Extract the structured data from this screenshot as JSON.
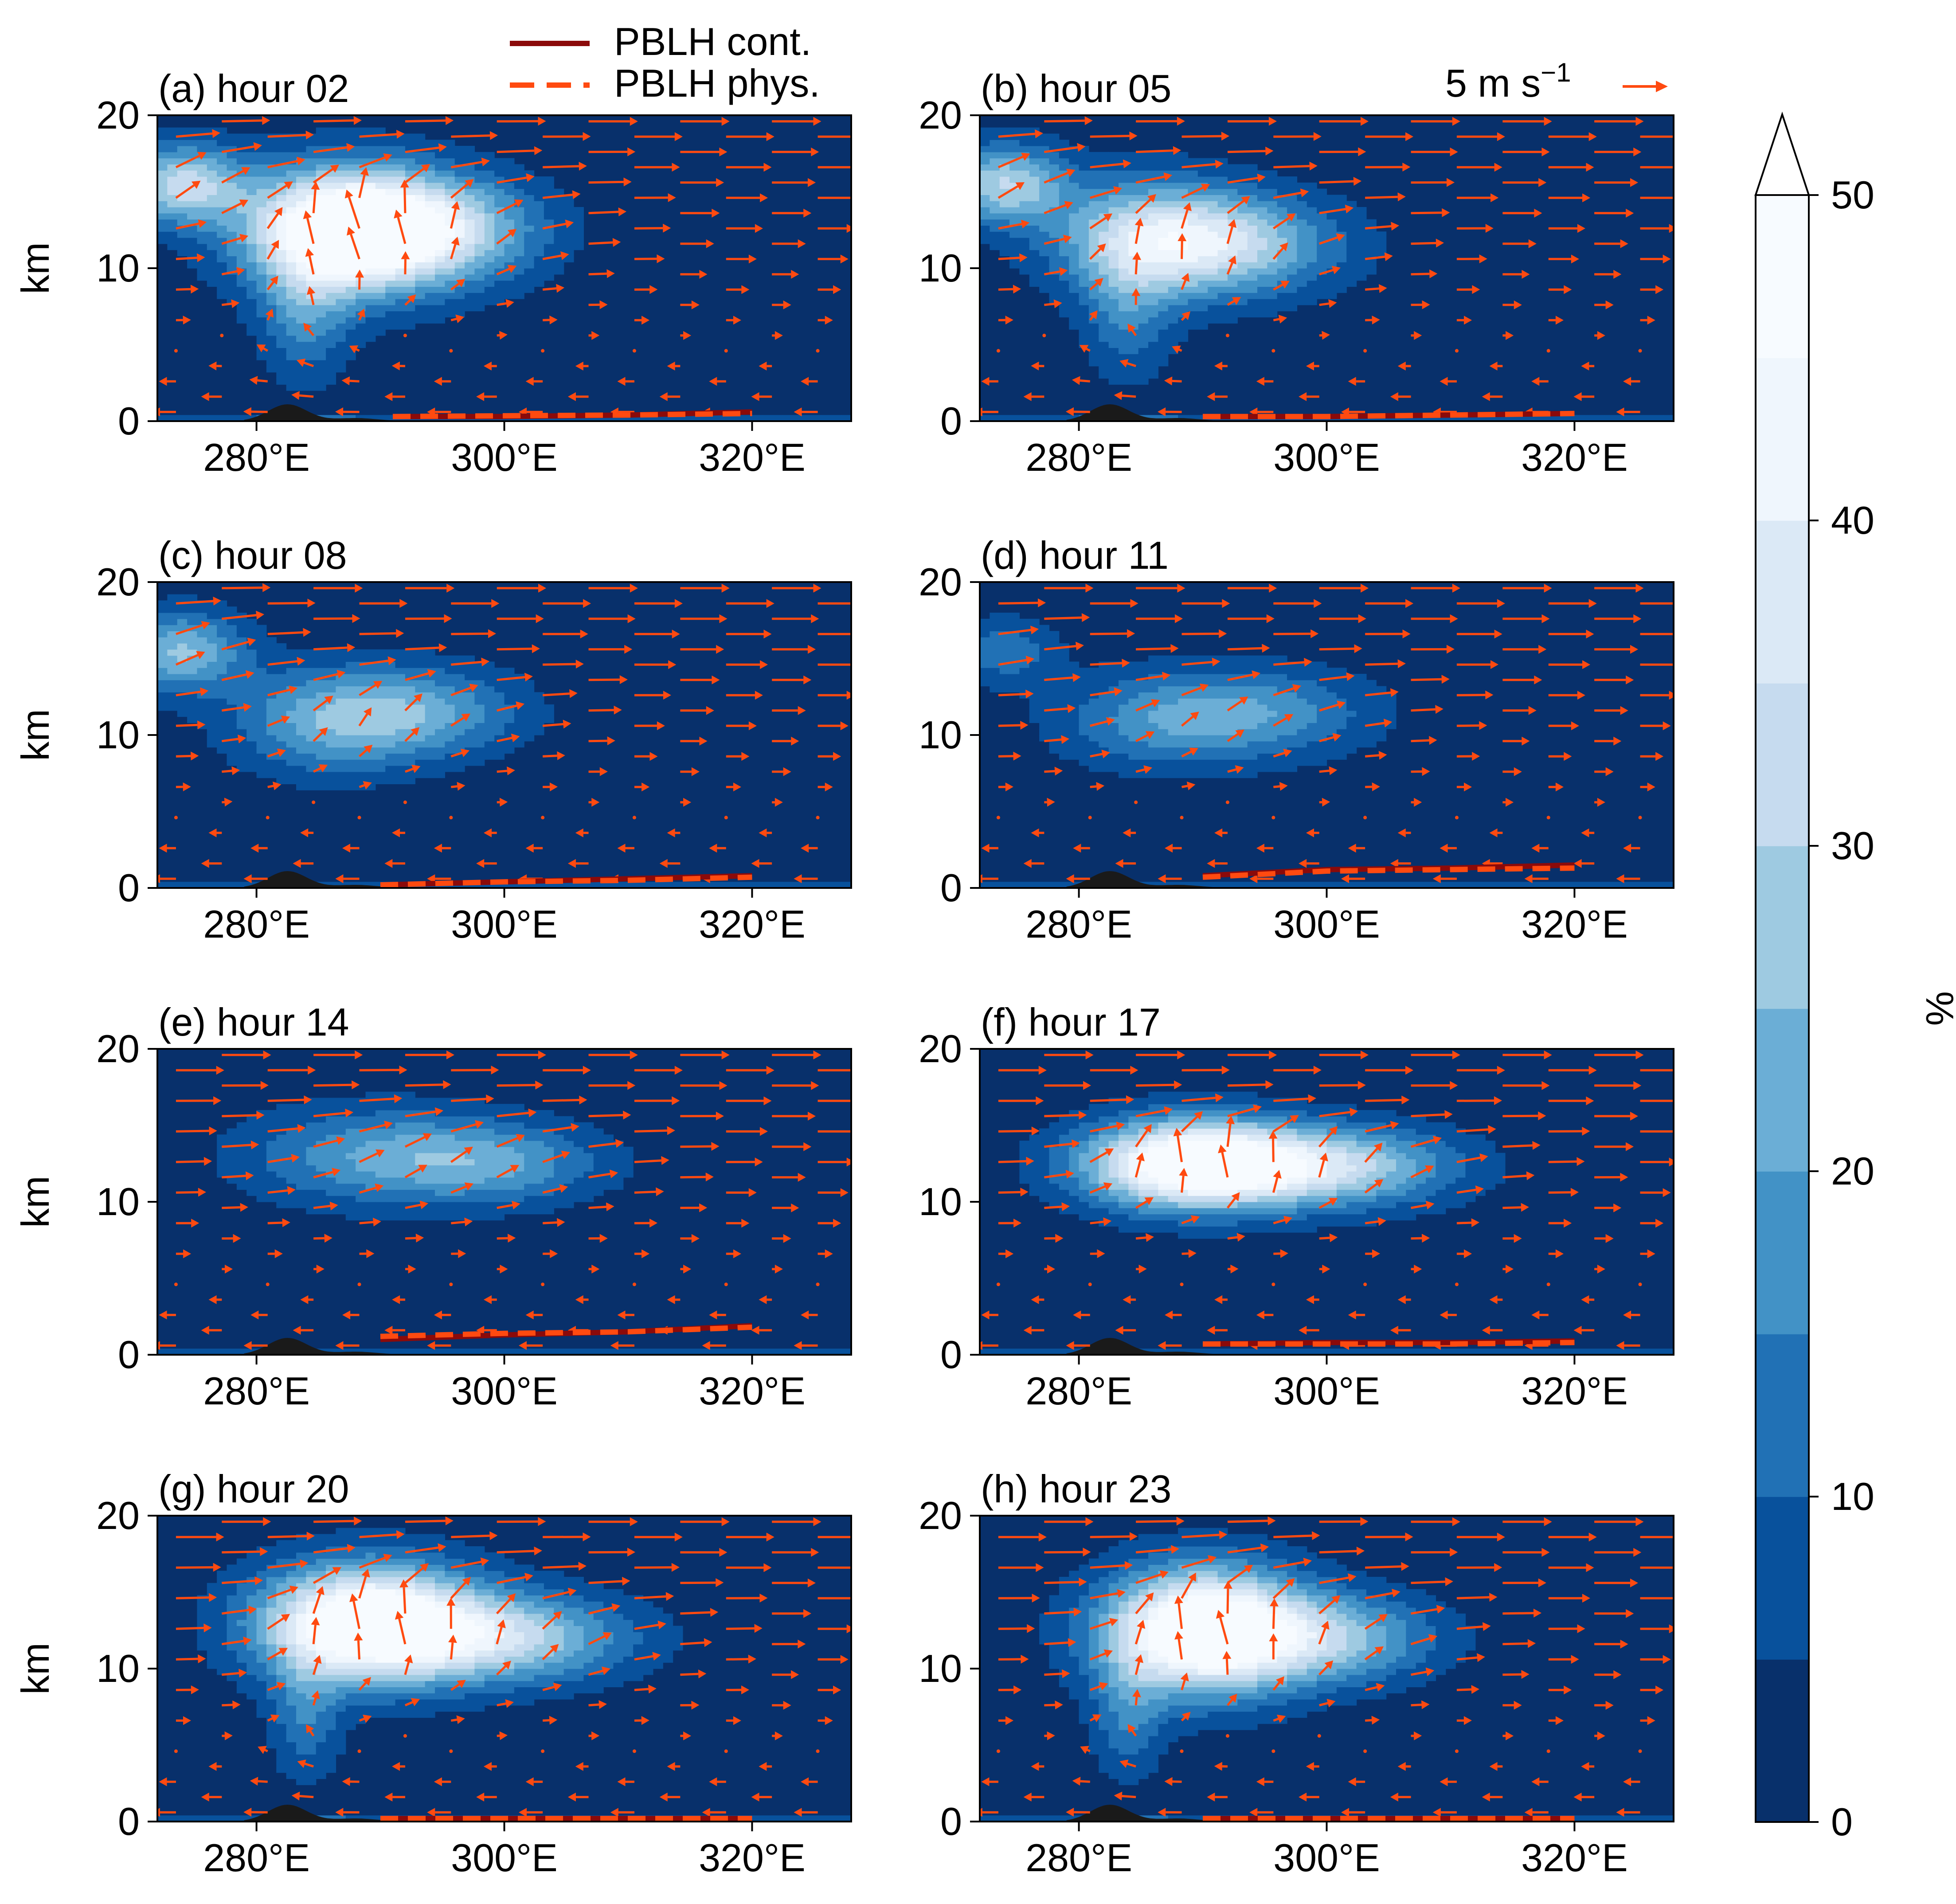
{
  "chart_data": {
    "type": "heatmap",
    "description_free": true,
    "colorbar": {
      "label": "%",
      "ticks": [
        0,
        10,
        20,
        30,
        40,
        50
      ],
      "levels": [
        0,
        5,
        10,
        15,
        20,
        25,
        30,
        35,
        40,
        45,
        50
      ],
      "extend": "max",
      "colors": [
        "#08306b",
        "#08519c",
        "#2171b5",
        "#4292c6",
        "#6baed6",
        "#9ecae1",
        "#c6dbef",
        "#dbe9f6",
        "#eff6fd",
        "#f7fbff"
      ]
    },
    "legend": {
      "placement": "top-center",
      "items": [
        {
          "label": "PBLH cont.",
          "style": "solid",
          "color": "#8b0a0a"
        },
        {
          "label": "PBLH phys.",
          "style": "dashed",
          "color": "#ff4a10"
        }
      ]
    },
    "quiver_key": {
      "label": "5 m s",
      "exponent": "−1",
      "color": "#ff4a10",
      "placement": "top-right"
    },
    "axes": {
      "xlim": [
        272,
        328
      ],
      "ylim": [
        0,
        20
      ],
      "xticks": [
        280,
        300,
        320
      ],
      "xtick_labels": [
        "280°E",
        "300°E",
        "320°E"
      ],
      "yticks": [
        0,
        10,
        20
      ],
      "ytick_labels": [
        "0",
        "10",
        "20"
      ],
      "ylabel": "km"
    },
    "panels": [
      {
        "title": "(a) hour 02",
        "cloud_blobs": [
          {
            "x": 287,
            "y": 12.5,
            "sx": 5.5,
            "sy": 2.8,
            "v": 52
          },
          {
            "x": 294,
            "y": 12.5,
            "sx": 6.0,
            "sy": 2.4,
            "v": 30
          },
          {
            "x": 274,
            "y": 15.5,
            "sx": 3.5,
            "sy": 1.8,
            "v": 30
          },
          {
            "x": 284,
            "y": 7,
            "sx": 2.5,
            "sy": 3,
            "v": 14
          }
        ],
        "pblh": [
          [
            291,
            0.3
          ],
          [
            300,
            0.3
          ],
          [
            310,
            0.4
          ],
          [
            320,
            0.6
          ]
        ],
        "pblh_phys": [
          [
            291,
            0.3
          ],
          [
            300,
            0.35
          ],
          [
            310,
            0.4
          ],
          [
            320,
            0.5
          ]
        ],
        "low_level_flow": -2.0,
        "upper_level_flow": 2.5
      },
      {
        "title": "(b) hour 05",
        "cloud_blobs": [
          {
            "x": 286,
            "y": 12,
            "sx": 5.5,
            "sy": 2.6,
            "v": 30
          },
          {
            "x": 293,
            "y": 11.5,
            "sx": 6.0,
            "sy": 2.2,
            "v": 22
          },
          {
            "x": 274,
            "y": 15.5,
            "sx": 3.5,
            "sy": 1.8,
            "v": 28
          },
          {
            "x": 284,
            "y": 7,
            "sx": 2.5,
            "sy": 3,
            "v": 12
          }
        ],
        "pblh": [
          [
            290,
            0.3
          ],
          [
            300,
            0.3
          ],
          [
            310,
            0.4
          ],
          [
            320,
            0.5
          ]
        ],
        "pblh_phys": [
          [
            290,
            0.3
          ],
          [
            300,
            0.3
          ],
          [
            310,
            0.4
          ],
          [
            320,
            0.5
          ]
        ],
        "low_level_flow": -2.0,
        "upper_level_flow": 2.5
      },
      {
        "title": "(c) hour 08",
        "cloud_blobs": [
          {
            "x": 286,
            "y": 11,
            "sx": 5.5,
            "sy": 2.4,
            "v": 20
          },
          {
            "x": 294,
            "y": 11.5,
            "sx": 5.5,
            "sy": 2.0,
            "v": 16
          },
          {
            "x": 274,
            "y": 15.5,
            "sx": 3.5,
            "sy": 1.8,
            "v": 24
          }
        ],
        "pblh": [
          [
            290,
            0.2
          ],
          [
            300,
            0.4
          ],
          [
            310,
            0.6
          ],
          [
            320,
            0.8
          ]
        ],
        "pblh_phys": [
          [
            290,
            0.2
          ],
          [
            300,
            0.4
          ],
          [
            310,
            0.5
          ],
          [
            320,
            0.7
          ]
        ],
        "low_level_flow": -2.0,
        "upper_level_flow": 2.5
      },
      {
        "title": "(d) hour 11",
        "cloud_blobs": [
          {
            "x": 287,
            "y": 11,
            "sx": 6.0,
            "sy": 2.2,
            "v": 16
          },
          {
            "x": 296,
            "y": 11.5,
            "sx": 6.0,
            "sy": 2.0,
            "v": 13
          },
          {
            "x": 274,
            "y": 15.5,
            "sx": 3.0,
            "sy": 1.5,
            "v": 12
          }
        ],
        "pblh": [
          [
            290,
            0.8
          ],
          [
            300,
            1.2
          ],
          [
            310,
            1.3
          ],
          [
            320,
            1.5
          ]
        ],
        "pblh_phys": [
          [
            290,
            0.7
          ],
          [
            300,
            1.1
          ],
          [
            310,
            1.2
          ],
          [
            320,
            1.3
          ]
        ],
        "low_level_flow": -2.0,
        "upper_level_flow": 2.5
      },
      {
        "title": "(e) hour 14",
        "cloud_blobs": [
          {
            "x": 290,
            "y": 13,
            "sx": 7.5,
            "sy": 2.2,
            "v": 18
          },
          {
            "x": 300,
            "y": 12.5,
            "sx": 6.0,
            "sy": 1.8,
            "v": 14
          }
        ],
        "pblh": [
          [
            290,
            1.0
          ],
          [
            300,
            1.3
          ],
          [
            310,
            1.5
          ],
          [
            320,
            1.9
          ]
        ],
        "pblh_phys": [
          [
            290,
            1.2
          ],
          [
            300,
            1.4
          ],
          [
            310,
            1.5
          ],
          [
            320,
            1.8
          ]
        ],
        "low_level_flow": -2.0,
        "upper_level_flow": 2.5
      },
      {
        "title": "(f) hour 17",
        "cloud_blobs": [
          {
            "x": 289,
            "y": 12.5,
            "sx": 6.0,
            "sy": 2.0,
            "v": 52
          },
          {
            "x": 300,
            "y": 12.3,
            "sx": 7.0,
            "sy": 1.8,
            "v": 30
          }
        ],
        "pblh": [
          [
            290,
            0.7
          ],
          [
            300,
            0.8
          ],
          [
            310,
            0.8
          ],
          [
            320,
            0.9
          ]
        ],
        "pblh_phys": [
          [
            290,
            0.7
          ],
          [
            300,
            0.7
          ],
          [
            310,
            0.7
          ],
          [
            320,
            0.8
          ]
        ],
        "low_level_flow": -2.0,
        "upper_level_flow": 2.5
      },
      {
        "title": "(g) hour 20",
        "cloud_blobs": [
          {
            "x": 289,
            "y": 13,
            "sx": 6.0,
            "sy": 2.6,
            "v": 56
          },
          {
            "x": 300,
            "y": 12,
            "sx": 7.0,
            "sy": 2.0,
            "v": 28
          },
          {
            "x": 284,
            "y": 7,
            "sx": 2.0,
            "sy": 3,
            "v": 12
          }
        ],
        "pblh": [
          [
            290,
            0.2
          ],
          [
            300,
            0.2
          ],
          [
            310,
            0.2
          ],
          [
            320,
            0.2
          ]
        ],
        "pblh_phys": [
          [
            290,
            0.2
          ],
          [
            300,
            0.2
          ],
          [
            310,
            0.2
          ],
          [
            320,
            0.2
          ]
        ],
        "low_level_flow": -2.0,
        "upper_level_flow": 2.5
      },
      {
        "title": "(h) hour 23",
        "cloud_blobs": [
          {
            "x": 290,
            "y": 12.5,
            "sx": 5.5,
            "sy": 2.8,
            "v": 56
          },
          {
            "x": 300,
            "y": 12,
            "sx": 6.0,
            "sy": 2.0,
            "v": 24
          },
          {
            "x": 284,
            "y": 7,
            "sx": 2.0,
            "sy": 3,
            "v": 12
          }
        ],
        "pblh": [
          [
            290,
            0.2
          ],
          [
            300,
            0.2
          ],
          [
            310,
            0.2
          ],
          [
            320,
            0.2
          ]
        ],
        "pblh_phys": [
          [
            290,
            0.2
          ],
          [
            300,
            0.2
          ],
          [
            310,
            0.2
          ],
          [
            320,
            0.2
          ]
        ],
        "low_level_flow": -2.0,
        "upper_level_flow": 2.5
      }
    ]
  }
}
